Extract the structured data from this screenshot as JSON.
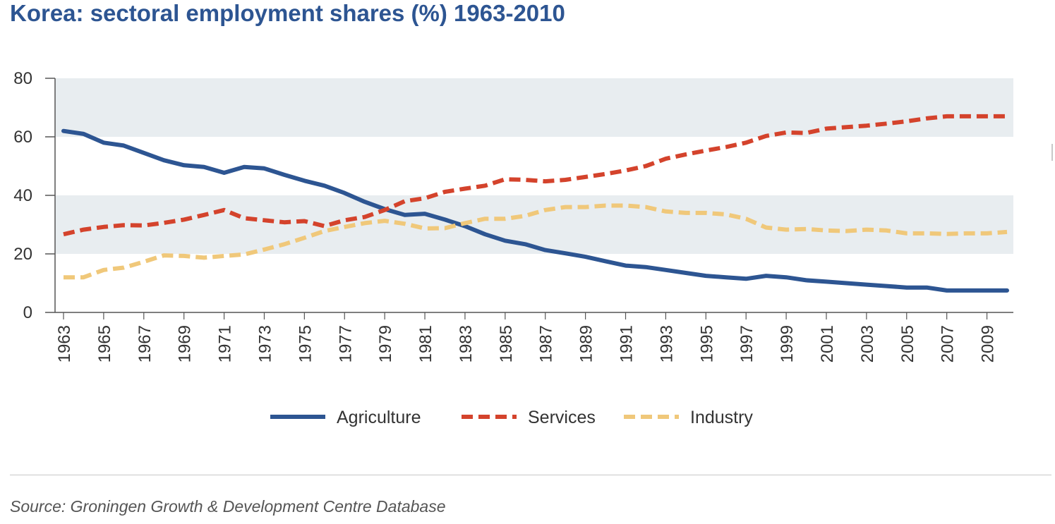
{
  "header": {
    "title": "Korea: sectoral employment shares (%) 1963-2010"
  },
  "footer": {
    "source": "Source: Groningen Growth & Development Centre Database"
  },
  "chart_data": {
    "type": "line",
    "title": "Korea: sectoral employment shares (%) 1963-2010",
    "xlabel": "",
    "ylabel": "",
    "ylim": [
      0,
      80
    ],
    "yticks": [
      0,
      20,
      40,
      60,
      80
    ],
    "xlim": [
      1963,
      2010
    ],
    "xticks": [
      1963,
      1965,
      1967,
      1969,
      1971,
      1973,
      1975,
      1977,
      1979,
      1981,
      1983,
      1985,
      1987,
      1989,
      1991,
      1993,
      1995,
      1997,
      1999,
      2001,
      2003,
      2005,
      2007,
      2009
    ],
    "grid": "alternating horizontal bands",
    "legend_position": "bottom",
    "x": [
      1963,
      1964,
      1965,
      1966,
      1967,
      1968,
      1969,
      1970,
      1971,
      1972,
      1973,
      1974,
      1975,
      1976,
      1977,
      1978,
      1979,
      1980,
      1981,
      1982,
      1983,
      1984,
      1985,
      1986,
      1987,
      1988,
      1989,
      1990,
      1991,
      1992,
      1993,
      1994,
      1995,
      1996,
      1997,
      1998,
      1999,
      2000,
      2001,
      2002,
      2003,
      2004,
      2005,
      2006,
      2007,
      2008,
      2009,
      2010
    ],
    "series": [
      {
        "name": "Agriculture",
        "color": "#2d5592",
        "style": "solid",
        "values": [
          62,
          61,
          58,
          57,
          54.5,
          52,
          50.3,
          49.7,
          47.7,
          49.7,
          49.2,
          47,
          45,
          43.3,
          40.8,
          37.8,
          35.3,
          33.3,
          33.7,
          31.7,
          29.5,
          26.7,
          24.5,
          23.3,
          21.3,
          20.2,
          19,
          17.5,
          16,
          15.5,
          14.5,
          13.5,
          12.5,
          12,
          11.5,
          12.5,
          12,
          11,
          10.5,
          10,
          9.5,
          9,
          8.5,
          8.5,
          7.5,
          7.5,
          7.5,
          7.5
        ]
      },
      {
        "name": "Services",
        "color": "#d4432c",
        "style": "dashed",
        "values": [
          26.7,
          28.3,
          29.2,
          29.8,
          29.7,
          30.6,
          31.7,
          33.3,
          35,
          32.2,
          31.5,
          30.8,
          31.2,
          29.5,
          31.5,
          32.6,
          35,
          38,
          39,
          41.2,
          42.3,
          43.3,
          45.5,
          45.3,
          44.8,
          45.3,
          46.3,
          47.3,
          48.5,
          50,
          52.5,
          54,
          55.3,
          56.5,
          58,
          60.3,
          61.5,
          61.3,
          62.8,
          63.3,
          63.8,
          64.5,
          65.3,
          66.3,
          67,
          67,
          67,
          67
        ]
      },
      {
        "name": "Industry",
        "color": "#f0c87a",
        "style": "dashed",
        "values": [
          12,
          12,
          14.5,
          15.3,
          17.3,
          19.5,
          19.3,
          18.7,
          19.3,
          19.8,
          21.5,
          23.3,
          25.5,
          27.8,
          29.2,
          30.5,
          31.3,
          30.3,
          28.7,
          28.8,
          30.5,
          32,
          32,
          33,
          35,
          36,
          36,
          36.5,
          36.5,
          36,
          34.5,
          34,
          34,
          33.5,
          32,
          29,
          28.3,
          28.5,
          28,
          27.8,
          28.3,
          28,
          27,
          27,
          26.8,
          27,
          27,
          27.5
        ]
      }
    ]
  }
}
